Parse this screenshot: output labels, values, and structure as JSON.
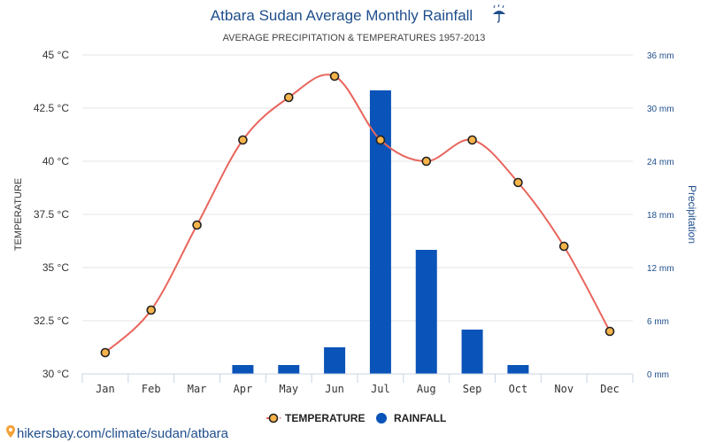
{
  "chart_data": {
    "type": "bar+line",
    "title": "Atbara Sudan Average Monthly Rainfall",
    "title_icon": "umbrella-rain-icon",
    "subtitle": "AVERAGE PRECIPITATION & TEMPERATURES 1957-2013",
    "categories": [
      "Jan",
      "Feb",
      "Mar",
      "Apr",
      "May",
      "Jun",
      "Jul",
      "Aug",
      "Sep",
      "Oct",
      "Nov",
      "Dec"
    ],
    "temperature": {
      "name": "TEMPERATURE",
      "values": [
        31,
        33,
        37,
        41,
        43,
        44,
        41,
        40,
        41,
        39,
        36,
        32
      ],
      "color": "#e8655c",
      "marker_fill": "#f7b44a"
    },
    "rainfall": {
      "name": "RAINFALL",
      "values": [
        0,
        0,
        0,
        1,
        1,
        3,
        32,
        14,
        5,
        1,
        0,
        0
      ],
      "color": "#0a53b8"
    },
    "y_left": {
      "label": "TEMPERATURE",
      "range": [
        30,
        45
      ],
      "ticks": [
        "30 °C",
        "32.5 °C",
        "35 °C",
        "37.5 °C",
        "40 °C",
        "42.5 °C",
        "45 °C"
      ]
    },
    "y_right": {
      "label": "Precipitation",
      "range": [
        0,
        36
      ],
      "ticks": [
        "0 mm",
        "6 mm",
        "12 mm",
        "18 mm",
        "24 mm",
        "30 mm",
        "36 mm"
      ]
    },
    "grid": true,
    "legend_position": "bottom-center"
  },
  "footer": {
    "icon": "location-pin-icon",
    "text": "hikersbay.com/climate/sudan/atbara"
  }
}
